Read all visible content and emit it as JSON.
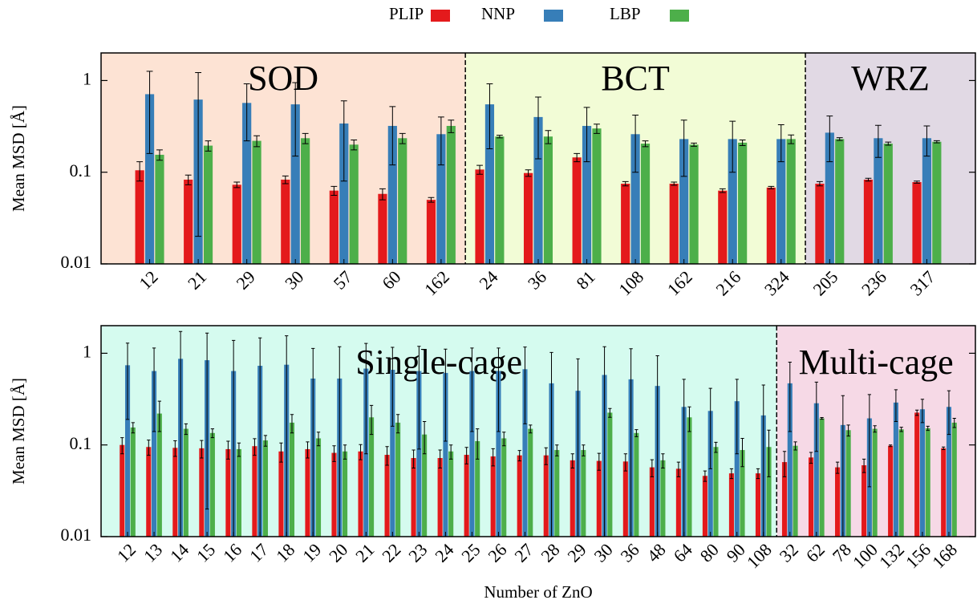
{
  "legend_position": "top",
  "chart_data": [
    {
      "type": "bar",
      "log_scale": true,
      "ylabel": "Mean MSD [Å]",
      "ylim": [
        0.01,
        2
      ],
      "yticks": [
        0.01,
        0.1,
        1
      ],
      "groups": [
        {
          "label": "SOD",
          "color": "#fde3d4",
          "categories": [
            "12",
            "21",
            "29",
            "30",
            "57",
            "60",
            "162"
          ]
        },
        {
          "label": "BCT",
          "color": "#f2fcd6",
          "categories": [
            "24",
            "36",
            "81",
            "108",
            "162",
            "216",
            "324"
          ]
        },
        {
          "label": "WRZ",
          "color": "#e1d9e4",
          "categories": [
            "205",
            "236",
            "317"
          ]
        }
      ],
      "series": [
        {
          "name": "PLIP",
          "color": "#e41a1c",
          "values": [
            0.105,
            0.083,
            0.073,
            0.083,
            0.063,
            0.058,
            0.05,
            0.107,
            0.098,
            0.145,
            0.075,
            0.075,
            0.063,
            0.068,
            0.075,
            0.083,
            0.078
          ],
          "errors": [
            0.025,
            0.01,
            0.005,
            0.008,
            0.007,
            0.008,
            0.003,
            0.012,
            0.008,
            0.015,
            0.004,
            0.003,
            0.003,
            0.002,
            0.004,
            0.003,
            0.002
          ]
        },
        {
          "name": "NNP",
          "color": "#377eb8",
          "values": [
            0.71,
            0.62,
            0.57,
            0.55,
            0.34,
            0.32,
            0.26,
            0.55,
            0.4,
            0.32,
            0.26,
            0.23,
            0.23,
            0.23,
            0.27,
            0.235,
            0.235
          ],
          "errors": [
            0.55,
            0.6,
            0.35,
            0.4,
            0.26,
            0.2,
            0.14,
            0.37,
            0.26,
            0.19,
            0.16,
            0.14,
            0.13,
            0.1,
            0.14,
            0.09,
            0.085
          ]
        },
        {
          "name": "LBP",
          "color": "#4daf4a",
          "values": [
            0.155,
            0.195,
            0.22,
            0.235,
            0.2,
            0.235,
            0.32,
            0.245,
            0.245,
            0.3,
            0.205,
            0.2,
            0.21,
            0.23,
            0.23,
            0.205,
            0.215
          ],
          "errors": [
            0.02,
            0.025,
            0.03,
            0.03,
            0.025,
            0.03,
            0.05,
            0.008,
            0.04,
            0.035,
            0.015,
            0.008,
            0.015,
            0.025,
            0.008,
            0.008,
            0.006
          ]
        }
      ]
    },
    {
      "type": "bar",
      "log_scale": true,
      "ylabel": "Mean MSD [Å]",
      "xlabel": "Number of ZnO",
      "ylim": [
        0.01,
        2
      ],
      "yticks": [
        0.01,
        0.1,
        1
      ],
      "groups": [
        {
          "label": "Single-cage",
          "color": "#d5fbef",
          "categories": [
            "12",
            "13",
            "14",
            "15",
            "16",
            "17",
            "18",
            "19",
            "20",
            "21",
            "22",
            "23",
            "24",
            "25",
            "26",
            "27",
            "28",
            "29",
            "30",
            "36",
            "48",
            "64",
            "80",
            "90",
            "108"
          ]
        },
        {
          "label": "Multi-cage",
          "color": "#f6d9e6",
          "categories": [
            "32",
            "62",
            "78",
            "100",
            "132",
            "156",
            "168"
          ]
        }
      ],
      "series": [
        {
          "color": "#e41a1c",
          "values": [
            0.1,
            0.095,
            0.093,
            0.092,
            0.09,
            0.097,
            0.085,
            0.09,
            0.082,
            0.085,
            0.078,
            0.072,
            0.072,
            0.078,
            0.075,
            0.077,
            0.077,
            0.068,
            0.067,
            0.066,
            0.057,
            0.055,
            0.046,
            0.049,
            0.049,
            0.065,
            0.073,
            0.057,
            0.06,
            0.098,
            0.225,
            0.092
          ],
          "errors": [
            0.02,
            0.018,
            0.018,
            0.02,
            0.02,
            0.02,
            0.02,
            0.018,
            0.016,
            0.016,
            0.018,
            0.016,
            0.016,
            0.016,
            0.016,
            0.01,
            0.016,
            0.012,
            0.014,
            0.014,
            0.012,
            0.01,
            0.006,
            0.006,
            0.006,
            0.02,
            0.01,
            0.008,
            0.01,
            0.002,
            0.015,
            0.003
          ]
        },
        {
          "color": "#377eb8",
          "values": [
            0.74,
            0.64,
            0.87,
            0.84,
            0.64,
            0.73,
            0.75,
            0.53,
            0.53,
            0.68,
            0.66,
            0.64,
            0.61,
            0.64,
            0.64,
            0.67,
            0.47,
            0.39,
            0.58,
            0.52,
            0.44,
            0.26,
            0.235,
            0.3,
            0.21,
            0.47,
            0.285,
            0.165,
            0.195,
            0.29,
            0.245,
            0.26
          ],
          "errors": [
            0.55,
            0.5,
            0.86,
            0.82,
            0.74,
            0.74,
            0.8,
            0.6,
            0.65,
            0.6,
            0.5,
            0.55,
            0.5,
            0.5,
            0.5,
            0.5,
            0.55,
            0.48,
            0.6,
            0.6,
            0.5,
            0.26,
            0.18,
            0.22,
            0.24,
            0.33,
            0.2,
            0.18,
            0.16,
            0.11,
            0.07,
            0.13
          ]
        },
        {
          "color": "#4daf4a",
          "values": [
            0.155,
            0.22,
            0.15,
            0.135,
            0.09,
            0.112,
            0.175,
            0.118,
            0.085,
            0.2,
            0.175,
            0.13,
            0.085,
            0.11,
            0.118,
            0.15,
            0.088,
            0.088,
            0.225,
            0.135,
            0.068,
            0.2,
            0.095,
            0.088,
            0.095,
            0.098,
            0.195,
            0.145,
            0.15,
            0.148,
            0.152,
            0.175
          ],
          "errors": [
            0.02,
            0.08,
            0.02,
            0.015,
            0.015,
            0.015,
            0.04,
            0.02,
            0.015,
            0.07,
            0.04,
            0.05,
            0.015,
            0.04,
            0.02,
            0.015,
            0.012,
            0.012,
            0.025,
            0.012,
            0.012,
            0.06,
            0.012,
            0.03,
            0.05,
            0.01,
            0.004,
            0.02,
            0.012,
            0.008,
            0.008,
            0.02
          ]
        }
      ]
    }
  ]
}
